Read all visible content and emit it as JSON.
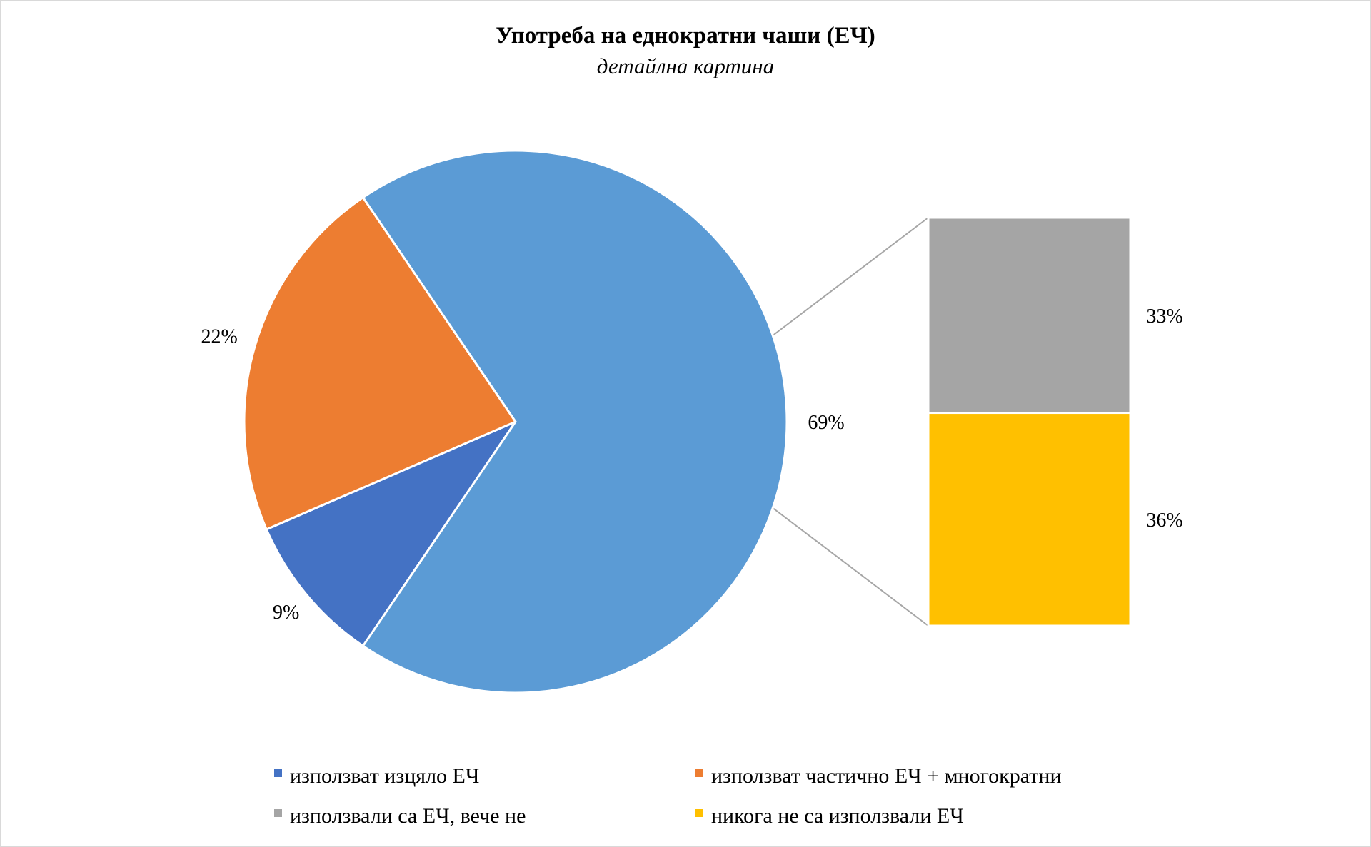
{
  "chart_data": {
    "type": "pie",
    "title": "Употреба  на еднократни  чаши (ЕЧ)",
    "subtitle": "детайлна картина",
    "pie": {
      "slices": [
        {
          "name": "използват изцяло ЕЧ",
          "value": 9,
          "label": "9%",
          "color": "#4472C4"
        },
        {
          "name": "използват частично ЕЧ + многократни",
          "value": 22,
          "label": "22%",
          "color": "#ED7D31"
        },
        {
          "name": "",
          "value": 69,
          "label": "69%",
          "color": "#5B9BD5"
        }
      ]
    },
    "bar_of_pie": {
      "segments": [
        {
          "name": "използвали са ЕЧ, вече не",
          "value": 33,
          "label": "33%",
          "color": "#A5A5A5"
        },
        {
          "name": "никога не са използвали ЕЧ",
          "value": 36,
          "label": "36%",
          "color": "#FFC000"
        }
      ]
    },
    "legend": {
      "placement": "bottom",
      "items": [
        {
          "label": "използват изцяло ЕЧ",
          "color": "#4472C4"
        },
        {
          "label": "използват частично ЕЧ + многократни",
          "color": "#ED7D31"
        },
        {
          "label": "използвали са ЕЧ, вече не",
          "color": "#A5A5A5"
        },
        {
          "label": "никога не са използвали ЕЧ",
          "color": "#FFC000"
        }
      ]
    }
  }
}
